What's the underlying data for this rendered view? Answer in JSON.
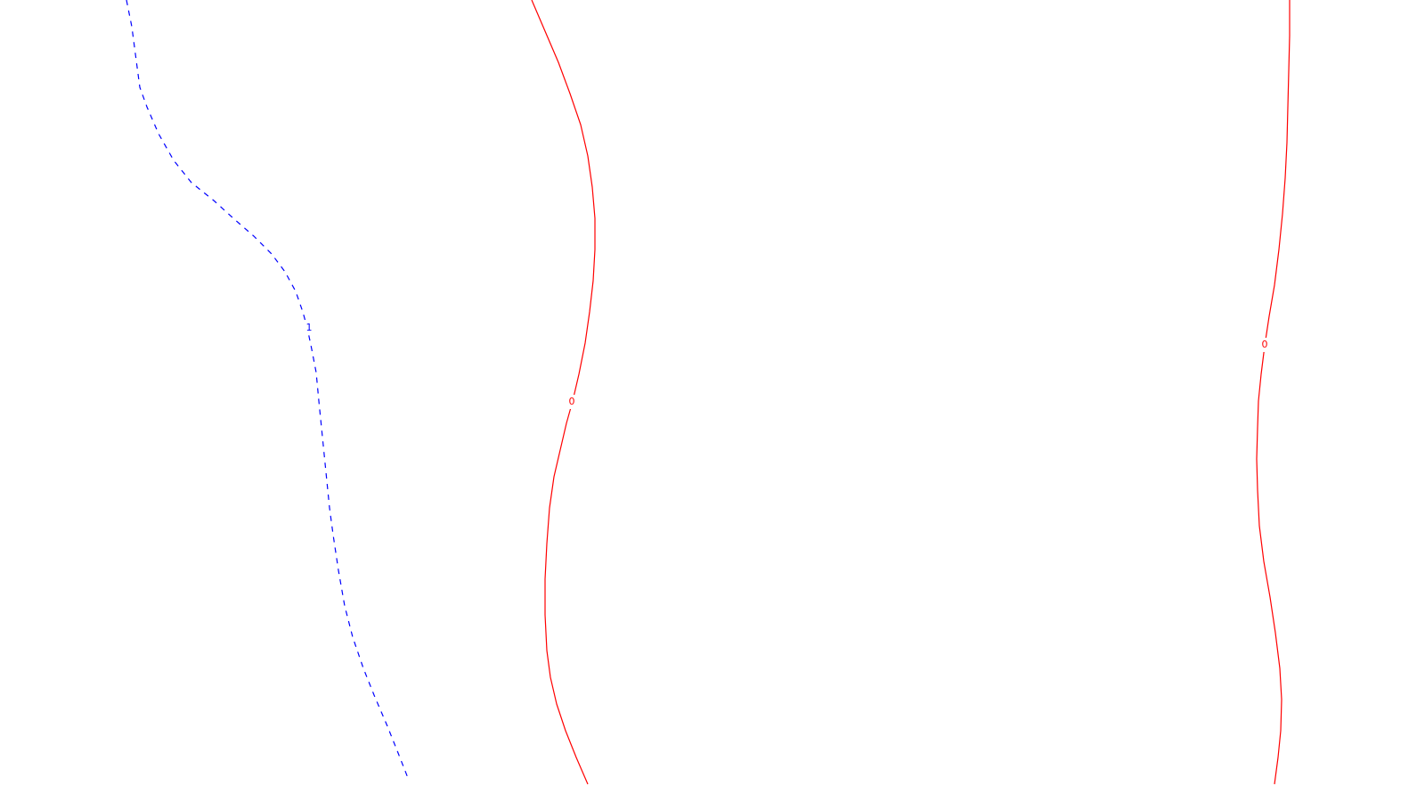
{
  "chart_data": {
    "type": "line",
    "title": "",
    "xlabel": "",
    "ylabel": "",
    "grid": false,
    "colors": {
      "level_0": "#ff0000",
      "level_1": "#0000ff",
      "background": "#ffffff"
    },
    "series": [
      {
        "level_label": "1",
        "color": "#0000ff",
        "dash": "dashed",
        "points": [
          [
            142,
            0
          ],
          [
            148,
            30
          ],
          [
            153,
            68
          ],
          [
            157,
            98
          ],
          [
            165,
            120
          ],
          [
            178,
            150
          ],
          [
            195,
            180
          ],
          [
            215,
            205
          ],
          [
            240,
            225
          ],
          [
            262,
            245
          ],
          [
            285,
            265
          ],
          [
            305,
            285
          ],
          [
            320,
            305
          ],
          [
            332,
            327
          ],
          [
            340,
            350
          ],
          [
            345,
            368
          ],
          [
            350,
            392
          ],
          [
            355,
            418
          ],
          [
            358,
            450
          ],
          [
            362,
            490
          ],
          [
            366,
            530
          ],
          [
            370,
            570
          ],
          [
            374,
            600
          ],
          [
            380,
            640
          ],
          [
            387,
            680
          ],
          [
            396,
            715
          ],
          [
            408,
            750
          ],
          [
            420,
            780
          ],
          [
            435,
            815
          ],
          [
            447,
            845
          ],
          [
            458,
            873
          ]
        ]
      },
      {
        "level_label": "0",
        "color": "#ff0000",
        "dash": "solid",
        "points": [
          [
            597,
            0
          ],
          [
            612,
            35
          ],
          [
            627,
            70
          ],
          [
            640,
            105
          ],
          [
            652,
            140
          ],
          [
            660,
            175
          ],
          [
            665,
            210
          ],
          [
            668,
            245
          ],
          [
            668,
            280
          ],
          [
            666,
            315
          ],
          [
            662,
            350
          ],
          [
            657,
            385
          ],
          [
            650,
            420
          ],
          [
            643,
            450
          ],
          [
            636,
            475
          ],
          [
            629,
            505
          ],
          [
            622,
            535
          ],
          [
            617,
            570
          ],
          [
            614,
            610
          ],
          [
            612,
            650
          ],
          [
            612,
            690
          ],
          [
            614,
            730
          ],
          [
            618,
            760
          ],
          [
            625,
            790
          ],
          [
            635,
            820
          ],
          [
            647,
            850
          ],
          [
            660,
            880
          ]
        ]
      },
      {
        "level_label": "0",
        "color": "#ff0000",
        "dash": "solid",
        "points": [
          [
            1448,
            0
          ],
          [
            1448,
            40
          ],
          [
            1447,
            80
          ],
          [
            1446,
            120
          ],
          [
            1445,
            160
          ],
          [
            1443,
            200
          ],
          [
            1440,
            240
          ],
          [
            1436,
            280
          ],
          [
            1431,
            320
          ],
          [
            1425,
            355
          ],
          [
            1420,
            388
          ],
          [
            1416,
            420
          ],
          [
            1413,
            450
          ],
          [
            1412,
            480
          ],
          [
            1411,
            515
          ],
          [
            1412,
            550
          ],
          [
            1414,
            590
          ],
          [
            1419,
            630
          ],
          [
            1426,
            670
          ],
          [
            1432,
            710
          ],
          [
            1437,
            750
          ],
          [
            1439,
            785
          ],
          [
            1438,
            820
          ],
          [
            1435,
            850
          ],
          [
            1431,
            880
          ]
        ]
      }
    ]
  }
}
